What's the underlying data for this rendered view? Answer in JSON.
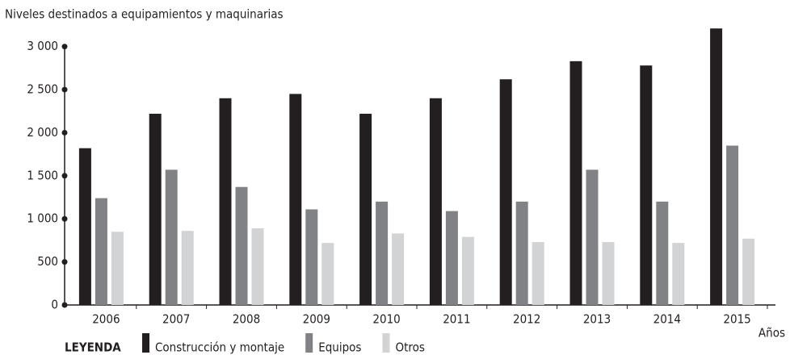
{
  "chart_data": {
    "type": "bar",
    "y_axis_label": "Niveles destinados a equipamientos y maquinarias",
    "x_axis_label": "Años",
    "legend_title": "LEYENDA",
    "categories": [
      "2006",
      "2007",
      "2008",
      "2009",
      "2010",
      "2011",
      "2012",
      "2013",
      "2014",
      "2015"
    ],
    "series": [
      {
        "name": "Construcción y montaje",
        "color": "#231f20",
        "values": [
          1820,
          2220,
          2400,
          2450,
          2220,
          2400,
          2620,
          2830,
          2780,
          3210
        ]
      },
      {
        "name": "Equipos",
        "color": "#808285",
        "values": [
          1240,
          1570,
          1370,
          1110,
          1200,
          1090,
          1200,
          1570,
          1200,
          1850
        ]
      },
      {
        "name": "Otros",
        "color": "#d1d3d4",
        "values": [
          850,
          860,
          890,
          720,
          830,
          790,
          730,
          730,
          720,
          770
        ]
      }
    ],
    "ylim": [
      0,
      3250
    ],
    "yticks": [
      0,
      500,
      {
        "value": 1000,
        "label": "1 000"
      },
      {
        "value": 1500,
        "label": "1 500"
      },
      {
        "value": 2000,
        "label": "2 000"
      },
      {
        "value": 2500,
        "label": "2 500"
      },
      {
        "value": 3000,
        "label": "3 000"
      }
    ]
  }
}
